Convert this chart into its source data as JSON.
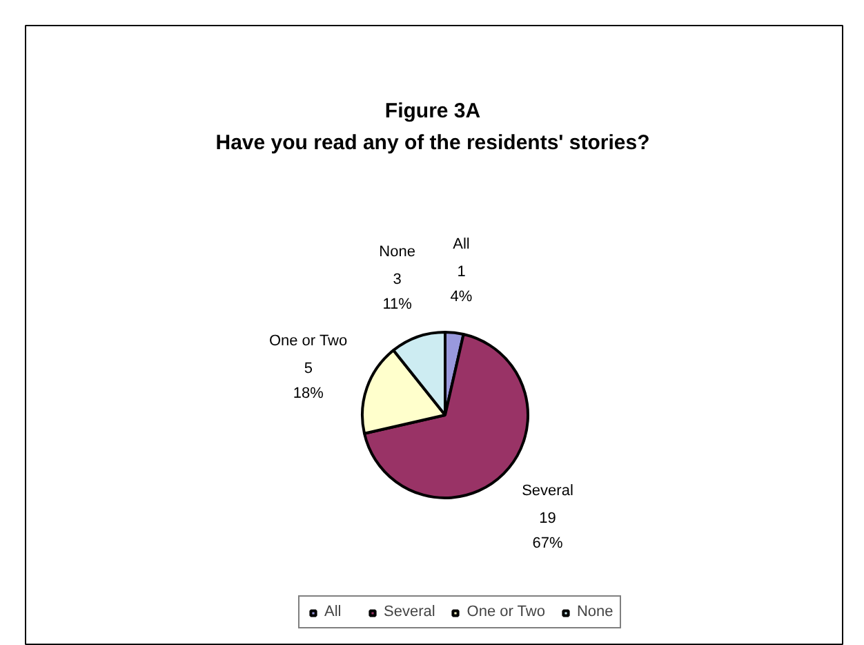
{
  "chart_data": {
    "type": "pie",
    "title": "Figure 3A",
    "subtitle": "Have you read any of the residents' stories?",
    "categories": [
      "All",
      "Several",
      "One or Two",
      "None"
    ],
    "values": [
      1,
      19,
      5,
      3
    ],
    "value_labels": [
      "1\n4%",
      "19\n67%",
      "5\n18%",
      "3\n11%"
    ],
    "colors": [
      "#9999dd",
      "#993366",
      "#ffffcc",
      "#cdecf2"
    ],
    "legend": "bottom"
  }
}
